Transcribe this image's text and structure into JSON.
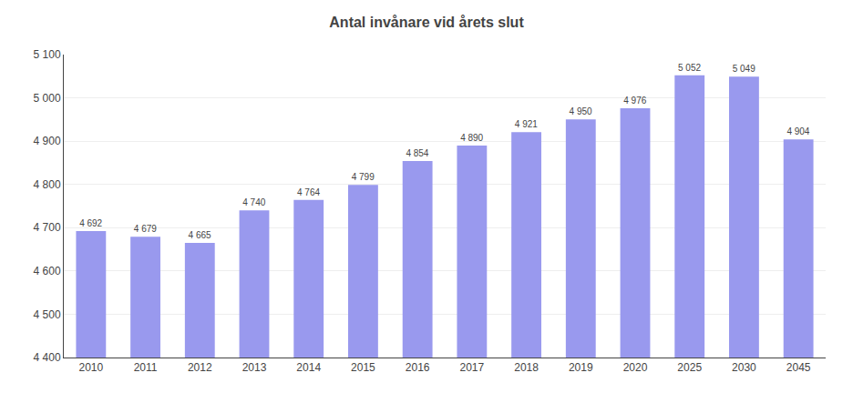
{
  "chart_data": {
    "type": "bar",
    "title": "Antal invånare vid årets slut",
    "categories": [
      "2010",
      "2011",
      "2012",
      "2013",
      "2014",
      "2015",
      "2016",
      "2017",
      "2018",
      "2019",
      "2020",
      "2025",
      "2030",
      "2045"
    ],
    "values": [
      4692,
      4679,
      4665,
      4740,
      4764,
      4799,
      4854,
      4890,
      4921,
      4950,
      4976,
      5052,
      5049,
      4904
    ],
    "value_labels": [
      "4 692",
      "4 679",
      "4 665",
      "4 740",
      "4 764",
      "4 799",
      "4 854",
      "4 890",
      "4 921",
      "4 950",
      "4 976",
      "5 052",
      "5 049",
      "4 904"
    ],
    "data_labels": true,
    "color": "#9999EE",
    "ylim": [
      4400,
      5100
    ],
    "yticks": [
      {
        "value": 4400,
        "label": "4 400"
      },
      {
        "value": 4500,
        "label": "4 500"
      },
      {
        "value": 4600,
        "label": "4 600"
      },
      {
        "value": 4700,
        "label": "4 700"
      },
      {
        "value": 4800,
        "label": "4 800"
      },
      {
        "value": 4900,
        "label": "4 900"
      },
      {
        "value": 5000,
        "label": "5 000"
      },
      {
        "value": 5100,
        "label": "5 100"
      }
    ],
    "grid": true
  }
}
